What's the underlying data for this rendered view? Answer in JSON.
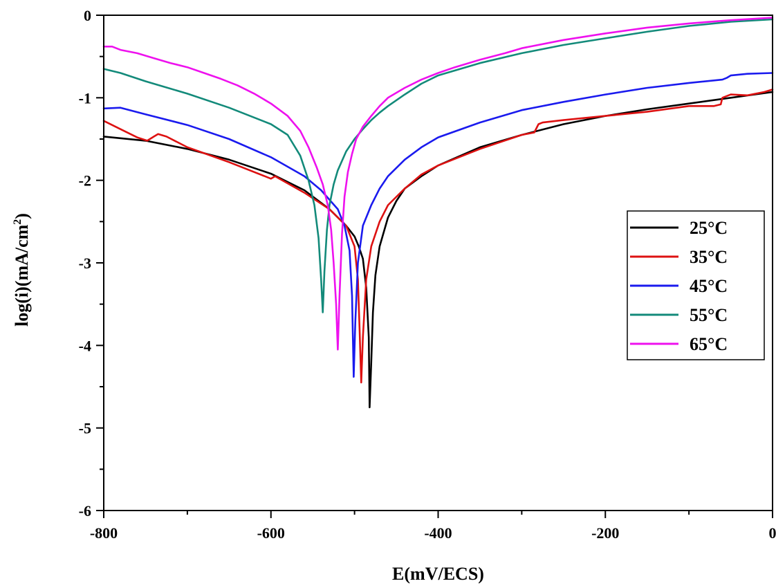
{
  "chart_data": {
    "type": "line",
    "xlabel": "E(mV/ECS)",
    "ylabel_main": "log(i)(mA/cm",
    "ylabel_sup": "2",
    "ylabel_close": ")",
    "xlim": [
      -800,
      0
    ],
    "ylim": [
      -6,
      0
    ],
    "x_ticks": [
      -800,
      -600,
      -400,
      -200,
      0
    ],
    "x_tick_labels": [
      "-800",
      "-600",
      "-400",
      "-200",
      "0"
    ],
    "y_ticks": [
      0,
      -1,
      -2,
      -3,
      -4,
      -5,
      -6
    ],
    "y_tick_labels": [
      "0",
      "-1",
      "-2",
      "-3",
      "-4",
      "-5",
      "-6"
    ],
    "legend_position": "right",
    "series": [
      {
        "name": "25°C",
        "color": "#000000",
        "x": [
          -800,
          -750,
          -700,
          -650,
          -600,
          -560,
          -530,
          -510,
          -500,
          -495,
          -490,
          -486,
          -483,
          -482,
          -480,
          -478,
          -475,
          -470,
          -460,
          -450,
          -440,
          -420,
          -400,
          -350,
          -300,
          -250,
          -200,
          -150,
          -100,
          -50,
          0
        ],
        "y": [
          -1.47,
          -1.52,
          -1.62,
          -1.75,
          -1.92,
          -2.12,
          -2.35,
          -2.55,
          -2.68,
          -2.8,
          -2.95,
          -3.3,
          -3.9,
          -4.75,
          -4.2,
          -3.6,
          -3.15,
          -2.8,
          -2.45,
          -2.25,
          -2.1,
          -1.95,
          -1.82,
          -1.6,
          -1.45,
          -1.32,
          -1.22,
          -1.14,
          -1.07,
          -1.0,
          -0.93
        ]
      },
      {
        "name": "35°C",
        "color": "#dd1111",
        "x": [
          -800,
          -780,
          -760,
          -748,
          -740,
          -735,
          -725,
          -700,
          -650,
          -600,
          -595,
          -590,
          -560,
          -530,
          -510,
          -500,
          -496,
          -494,
          -492,
          -490,
          -486,
          -480,
          -470,
          -460,
          -440,
          -420,
          -400,
          -350,
          -300,
          -285,
          -280,
          -275,
          -250,
          -200,
          -150,
          -100,
          -70,
          -62,
          -60,
          -50,
          -30,
          -10,
          0
        ],
        "y": [
          -1.28,
          -1.38,
          -1.48,
          -1.52,
          -1.47,
          -1.44,
          -1.47,
          -1.6,
          -1.78,
          -1.98,
          -1.95,
          -1.98,
          -2.15,
          -2.35,
          -2.55,
          -2.8,
          -3.2,
          -3.8,
          -4.45,
          -3.9,
          -3.2,
          -2.8,
          -2.5,
          -2.3,
          -2.1,
          -1.93,
          -1.82,
          -1.62,
          -1.45,
          -1.42,
          -1.32,
          -1.3,
          -1.27,
          -1.22,
          -1.17,
          -1.1,
          -1.1,
          -1.08,
          -1.0,
          -0.96,
          -0.97,
          -0.93,
          -0.9
        ]
      },
      {
        "name": "45°C",
        "color": "#1a1aee",
        "x": [
          -800,
          -780,
          -750,
          -700,
          -650,
          -600,
          -560,
          -540,
          -520,
          -512,
          -506,
          -503,
          -501,
          -499,
          -496,
          -490,
          -480,
          -470,
          -460,
          -440,
          -420,
          -400,
          -350,
          -300,
          -250,
          -200,
          -150,
          -100,
          -60,
          -55,
          -50,
          -30,
          0
        ],
        "y": [
          -1.13,
          -1.12,
          -1.2,
          -1.33,
          -1.5,
          -1.72,
          -1.95,
          -2.12,
          -2.35,
          -2.55,
          -2.85,
          -3.4,
          -4.38,
          -3.7,
          -3.0,
          -2.55,
          -2.3,
          -2.1,
          -1.95,
          -1.75,
          -1.6,
          -1.48,
          -1.3,
          -1.15,
          -1.05,
          -0.96,
          -0.88,
          -0.82,
          -0.78,
          -0.76,
          -0.73,
          -0.71,
          -0.7
        ]
      },
      {
        "name": "55°C",
        "color": "#138a7a",
        "x": [
          -800,
          -780,
          -750,
          -700,
          -650,
          -600,
          -580,
          -565,
          -555,
          -548,
          -543,
          -540,
          -538,
          -536,
          -533,
          -530,
          -525,
          -520,
          -510,
          -500,
          -490,
          -480,
          -470,
          -460,
          -440,
          -420,
          -400,
          -350,
          -300,
          -250,
          -200,
          -150,
          -100,
          -50,
          0
        ],
        "y": [
          -0.65,
          -0.7,
          -0.8,
          -0.95,
          -1.12,
          -1.32,
          -1.45,
          -1.7,
          -2.0,
          -2.3,
          -2.7,
          -3.2,
          -3.6,
          -3.1,
          -2.6,
          -2.3,
          -2.05,
          -1.88,
          -1.65,
          -1.5,
          -1.38,
          -1.27,
          -1.18,
          -1.1,
          -0.96,
          -0.83,
          -0.73,
          -0.58,
          -0.46,
          -0.36,
          -0.28,
          -0.2,
          -0.13,
          -0.08,
          -0.05
        ]
      },
      {
        "name": "65°C",
        "color": "#ee11ee",
        "x": [
          -800,
          -790,
          -780,
          -760,
          -740,
          -720,
          -700,
          -680,
          -660,
          -640,
          -620,
          -600,
          -580,
          -565,
          -555,
          -545,
          -538,
          -532,
          -528,
          -525,
          -522,
          -520,
          -518,
          -515,
          -512,
          -508,
          -503,
          -498,
          -490,
          -480,
          -470,
          -460,
          -440,
          -420,
          -400,
          -380,
          -350,
          -320,
          -300,
          -250,
          -200,
          -150,
          -100,
          -50,
          0
        ],
        "y": [
          -0.38,
          -0.38,
          -0.42,
          -0.46,
          -0.52,
          -0.58,
          -0.63,
          -0.7,
          -0.77,
          -0.85,
          -0.95,
          -1.07,
          -1.22,
          -1.4,
          -1.6,
          -1.85,
          -2.05,
          -2.3,
          -2.6,
          -3.0,
          -3.5,
          -4.05,
          -3.4,
          -2.65,
          -2.2,
          -1.9,
          -1.68,
          -1.5,
          -1.35,
          -1.22,
          -1.1,
          -1.0,
          -0.88,
          -0.78,
          -0.7,
          -0.63,
          -0.54,
          -0.46,
          -0.4,
          -0.3,
          -0.22,
          -0.15,
          -0.1,
          -0.06,
          -0.03
        ]
      }
    ]
  }
}
